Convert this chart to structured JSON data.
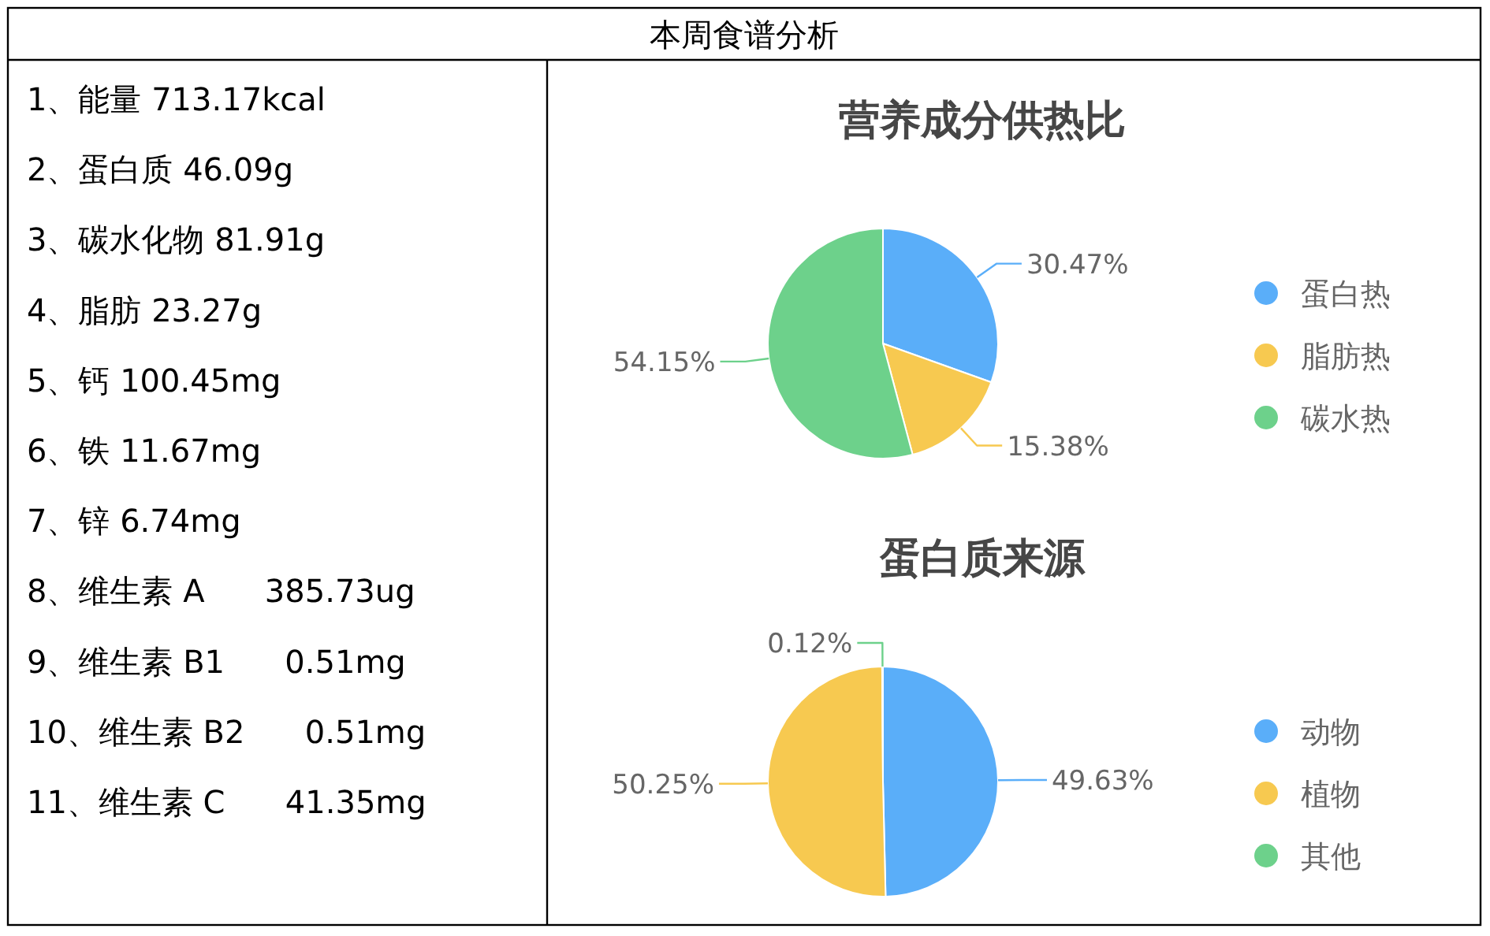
{
  "chart_data": [
    {
      "type": "other",
      "title": "本周食谱分析",
      "annotations": [
        "1、能量 713.17kcal",
        "2、蛋白质 46.09g",
        "3、碳水化物 81.91g",
        "4、脂肪 23.27g",
        "5、钙 100.45mg",
        "6、铁 11.67mg",
        "7、锌 6.74mg",
        "8、维生素 A      385.73ug",
        "9、维生素 B1      0.51mg",
        "10、维生素 B2      0.51mg",
        "11、维生素 C      41.35mg"
      ]
    },
    {
      "type": "pie",
      "title": "营养成分供热比",
      "categories": [
        "蛋白热",
        "脂肪热",
        "碳水热"
      ],
      "values": [
        30.47,
        15.38,
        54.15
      ],
      "colors": [
        "#5aaef9",
        "#f7c950",
        "#6dd18b"
      ],
      "value_labels": [
        "30.47%",
        "15.38%",
        "54.15%"
      ],
      "legend": "right"
    },
    {
      "type": "pie",
      "title": "蛋白质来源",
      "categories": [
        "动物",
        "植物",
        "其他"
      ],
      "values": [
        49.63,
        50.25,
        0.12
      ],
      "colors": [
        "#5aaef9",
        "#f7c950",
        "#6dd18b"
      ],
      "value_labels": [
        "49.63%",
        "50.25%",
        "0.12%"
      ],
      "legend": "right"
    }
  ]
}
